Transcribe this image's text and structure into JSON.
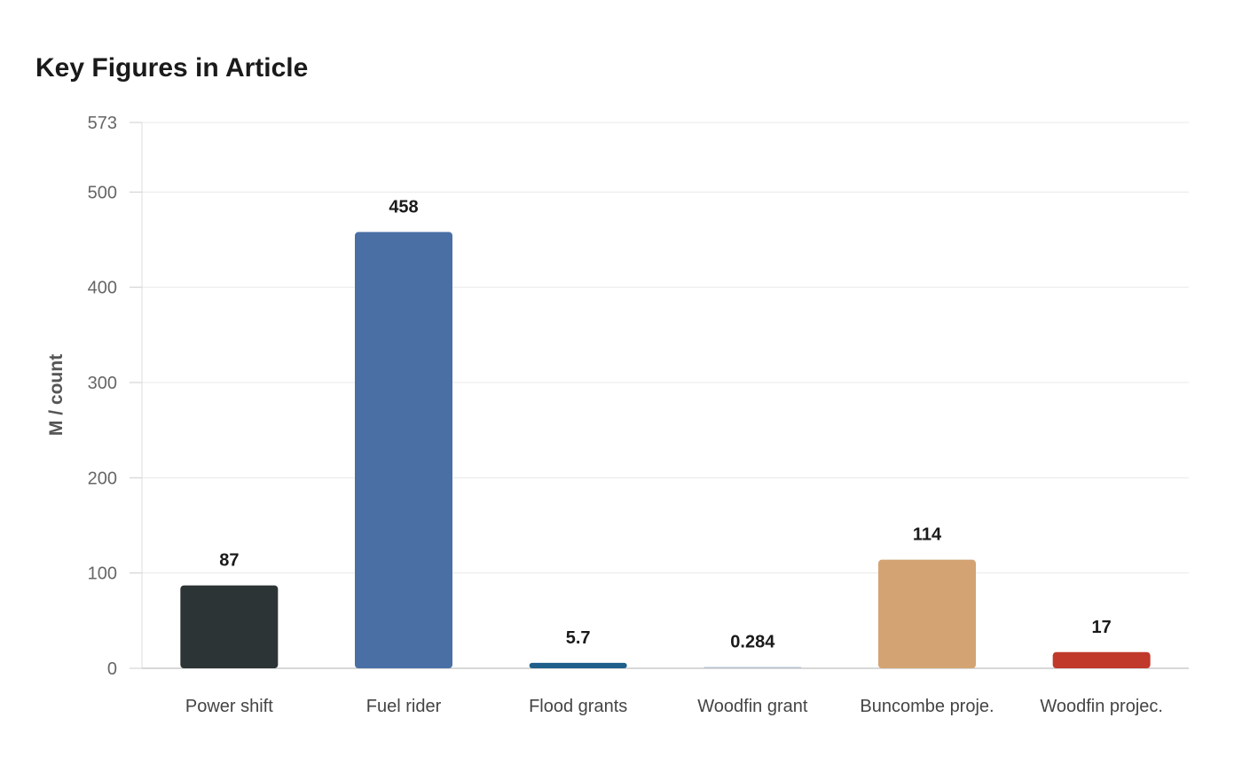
{
  "chart_data": {
    "type": "bar",
    "title": "Key Figures in Article",
    "xlabel": "",
    "ylabel": "M / count",
    "ylim": [
      0,
      573
    ],
    "yticks": [
      0,
      100,
      200,
      300,
      400,
      500,
      573
    ],
    "grid": true,
    "categories": [
      "Power shift",
      "Fuel rider",
      "Flood grants",
      "Woodfin grant",
      "Buncombe proje.",
      "Woodfin projec."
    ],
    "values": [
      87,
      458,
      5.7,
      0.284,
      114,
      17
    ],
    "value_labels": [
      "87",
      "458",
      "5.7",
      "0.284",
      "114",
      "17"
    ],
    "colors": [
      "#2d3436",
      "#4a6fa5",
      "#1f5f8b",
      "#b8c4d0",
      "#d4a373",
      "#c0392b"
    ]
  }
}
